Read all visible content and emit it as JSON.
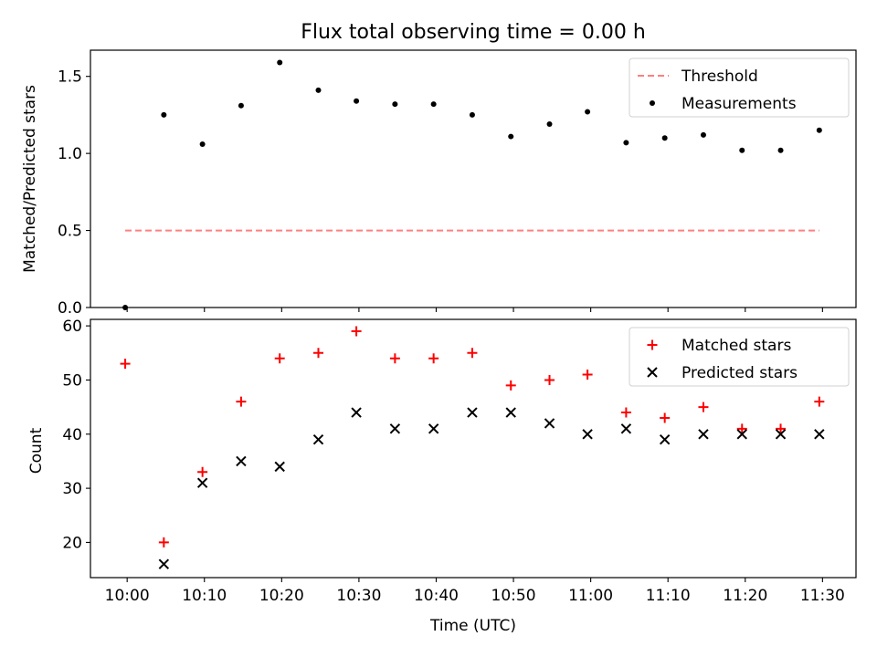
{
  "title": "Flux total observing time = 0.00 h",
  "xlabel": "Time (UTC)",
  "x_ticks": [
    "10:00",
    "10:10",
    "10:20",
    "10:30",
    "10:40",
    "10:50",
    "11:00",
    "11:10",
    "11:20",
    "11:30"
  ],
  "colors": {
    "threshold": "#ff7f7f",
    "measurement": "#000000",
    "matched": "#ff0000",
    "predicted": "#000000"
  },
  "chart_data": [
    {
      "type": "scatter",
      "ylabel": "Matched/Predicted stars",
      "ylim": [
        0,
        1.67
      ],
      "yticks": [
        0.0,
        0.5,
        1.0,
        1.5
      ],
      "ytick_labels": [
        "0.0",
        "0.5",
        "1.0",
        "1.5"
      ],
      "legend_position": "top-right",
      "grid": false,
      "series": [
        {
          "name": "Threshold",
          "style": "dashed-line",
          "x": [
            "09:59:45",
            "11:29:35"
          ],
          "y": [
            0.5,
            0.5
          ]
        },
        {
          "name": "Measurements",
          "style": "dot",
          "x": [
            "09:59:45",
            "10:04:45",
            "10:09:45",
            "10:14:45",
            "10:19:45",
            "10:24:45",
            "10:29:40",
            "10:34:40",
            "10:39:40",
            "10:44:40",
            "10:49:40",
            "10:54:40",
            "10:59:35",
            "11:04:35",
            "11:09:35",
            "11:14:35",
            "11:19:35",
            "11:24:35",
            "11:29:35"
          ],
          "y": [
            0.0,
            1.25,
            1.06,
            1.31,
            1.59,
            1.41,
            1.34,
            1.32,
            1.32,
            1.25,
            1.11,
            1.19,
            1.27,
            1.07,
            1.1,
            1.12,
            1.02,
            1.02,
            1.15
          ]
        }
      ]
    },
    {
      "type": "scatter",
      "ylabel": "Count",
      "ylim": [
        13.5,
        61.2
      ],
      "yticks": [
        20,
        30,
        40,
        50,
        60
      ],
      "ytick_labels": [
        "20",
        "30",
        "40",
        "50",
        "60"
      ],
      "legend_position": "top-right",
      "grid": false,
      "series": [
        {
          "name": "Matched stars",
          "style": "plus",
          "x": [
            "09:59:45",
            "10:04:45",
            "10:09:45",
            "10:14:45",
            "10:19:45",
            "10:24:45",
            "10:29:40",
            "10:34:40",
            "10:39:40",
            "10:44:40",
            "10:49:40",
            "10:54:40",
            "10:59:35",
            "11:04:35",
            "11:09:35",
            "11:14:35",
            "11:19:35",
            "11:24:35",
            "11:29:35"
          ],
          "y": [
            53,
            20,
            33,
            46,
            54,
            55,
            59,
            54,
            54,
            55,
            49,
            50,
            51,
            44,
            43,
            45,
            41,
            41,
            46
          ]
        },
        {
          "name": "Predicted stars",
          "style": "x",
          "x": [
            "10:04:45",
            "10:09:45",
            "10:14:45",
            "10:19:45",
            "10:24:45",
            "10:29:40",
            "10:34:40",
            "10:39:40",
            "10:44:40",
            "10:49:40",
            "10:54:40",
            "10:59:35",
            "11:04:35",
            "11:09:35",
            "11:14:35",
            "11:19:35",
            "11:24:35",
            "11:29:35"
          ],
          "y": [
            16,
            31,
            35,
            34,
            39,
            44,
            41,
            41,
            44,
            44,
            42,
            40,
            41,
            39,
            40,
            40,
            40,
            40
          ]
        }
      ]
    }
  ]
}
